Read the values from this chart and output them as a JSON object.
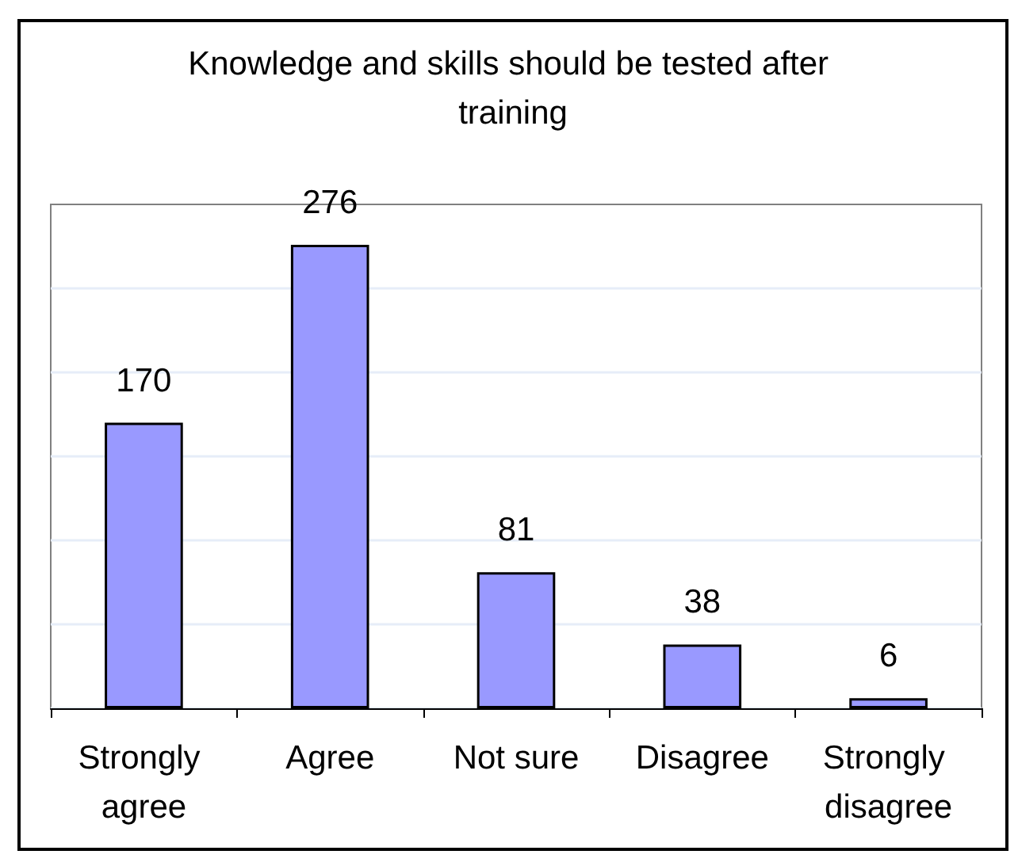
{
  "chart_data": {
    "type": "bar",
    "title": "Knowledge and skills should be tested after training",
    "categories": [
      "Strongly agree",
      "Agree",
      "Not sure",
      "Disagree",
      "Strongly disagree"
    ],
    "values": [
      170,
      276,
      81,
      38,
      6
    ],
    "color": "#9999ff",
    "ylim": [
      0,
      300
    ],
    "yticks": [
      0,
      50,
      100,
      150,
      200,
      250
    ],
    "grid": "y",
    "tick_labels": "x",
    "data_labels": true
  }
}
